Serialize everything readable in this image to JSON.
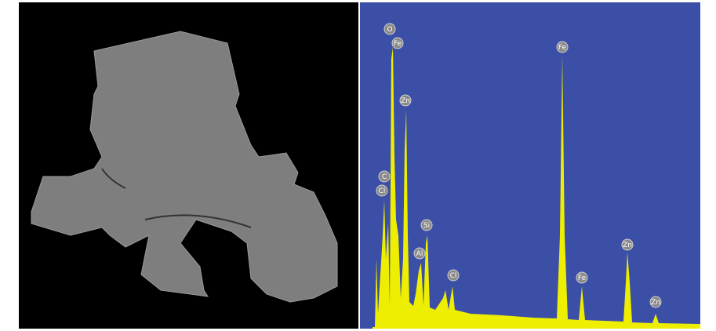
{
  "peak_labels": [
    "O",
    "Fe",
    "Zn",
    "C",
    "Cl",
    "Si",
    "Al",
    "Cl",
    "Fe",
    "Fe",
    "Zn",
    "Zn"
  ]
}
